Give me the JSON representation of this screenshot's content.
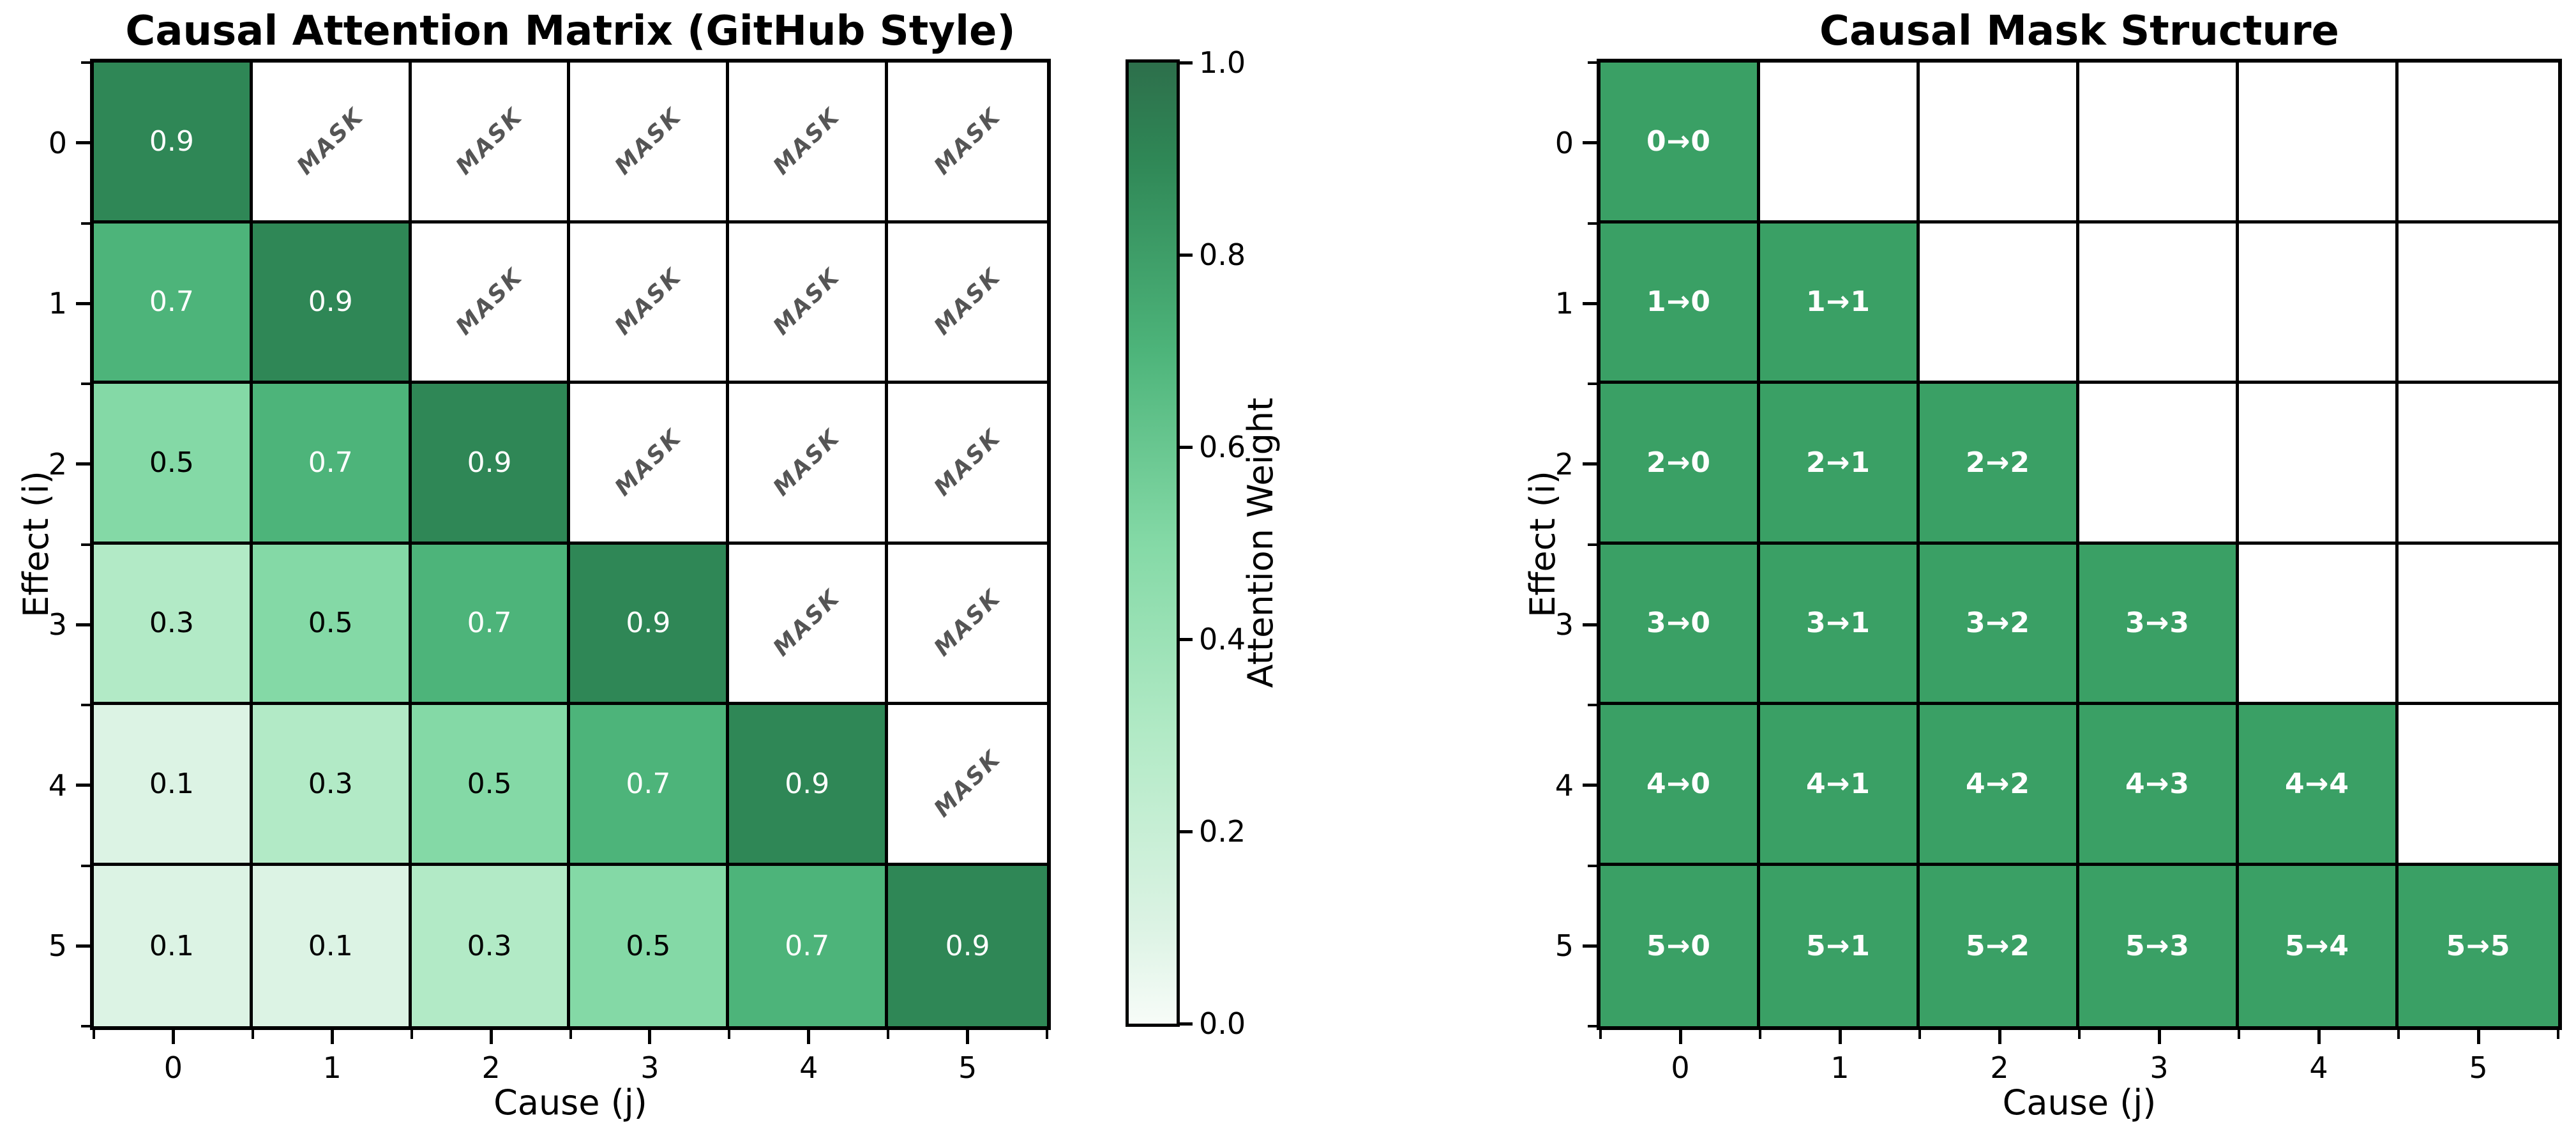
{
  "figure": {
    "background": "#ffffff"
  },
  "chart_data": [
    {
      "type": "heatmap",
      "title": "Causal Attention Matrix (GitHub Style)",
      "xlabel": "Cause (j)",
      "ylabel": "Effect (i)",
      "x_ticks": [
        "0",
        "1",
        "2",
        "3",
        "4",
        "5"
      ],
      "y_ticks": [
        "0",
        "1",
        "2",
        "3",
        "4",
        "5"
      ],
      "values": [
        [
          0.9,
          null,
          null,
          null,
          null,
          null
        ],
        [
          0.7,
          0.9,
          null,
          null,
          null,
          null
        ],
        [
          0.5,
          0.7,
          0.9,
          null,
          null,
          null
        ],
        [
          0.3,
          0.5,
          0.7,
          0.9,
          null,
          null
        ],
        [
          0.1,
          0.3,
          0.5,
          0.7,
          0.9,
          null
        ],
        [
          0.1,
          0.1,
          0.3,
          0.5,
          0.7,
          0.9
        ]
      ],
      "masked_text": "MASK",
      "colorbar": {
        "label": "Attention Weight",
        "ticks": [
          "0.0",
          "0.2",
          "0.4",
          "0.6",
          "0.8",
          "1.0"
        ],
        "range": [
          0,
          1
        ]
      }
    },
    {
      "type": "heatmap",
      "title": "Causal Mask Structure",
      "xlabel": "Cause (j)",
      "ylabel": "Effect (i)",
      "x_ticks": [
        "0",
        "1",
        "2",
        "3",
        "4",
        "5"
      ],
      "y_ticks": [
        "0",
        "1",
        "2",
        "3",
        "4",
        "5"
      ],
      "mask_structure": "lower-triangular",
      "cell_labels": [
        [
          "0→0"
        ],
        [
          "1→0",
          "1→1"
        ],
        [
          "2→0",
          "2→1",
          "2→2"
        ],
        [
          "3→0",
          "3→1",
          "3→2",
          "3→3"
        ],
        [
          "4→0",
          "4→1",
          "4→2",
          "4→3",
          "4→4"
        ],
        [
          "5→0",
          "5→1",
          "5→2",
          "5→3",
          "5→4",
          "5→5"
        ]
      ]
    }
  ],
  "style": {
    "value_colors": {
      "0.1": "#dcf3e4",
      "0.3": "#b2eac6",
      "0.5": "#84d9a6",
      "0.7": "#4db47a",
      "0.9": "#2f8756"
    },
    "value_text_dark": "#000000",
    "value_text_light": "#ffffff",
    "light_text_min": 0.7,
    "masked_bg": "#ffffff",
    "masked_text_color": "#555555",
    "right_cell_bg": "#3aa065",
    "right_cell_text": "#ffffff",
    "grid_line": "#000000",
    "colorbar_gradient": [
      [
        0,
        "#f7fcf8"
      ],
      [
        0.1,
        "#dcf3e4"
      ],
      [
        0.3,
        "#b2eac6"
      ],
      [
        0.5,
        "#84d9a6"
      ],
      [
        0.7,
        "#4db47a"
      ],
      [
        0.9,
        "#2f8756"
      ],
      [
        1,
        "#2d6f4b"
      ]
    ]
  }
}
